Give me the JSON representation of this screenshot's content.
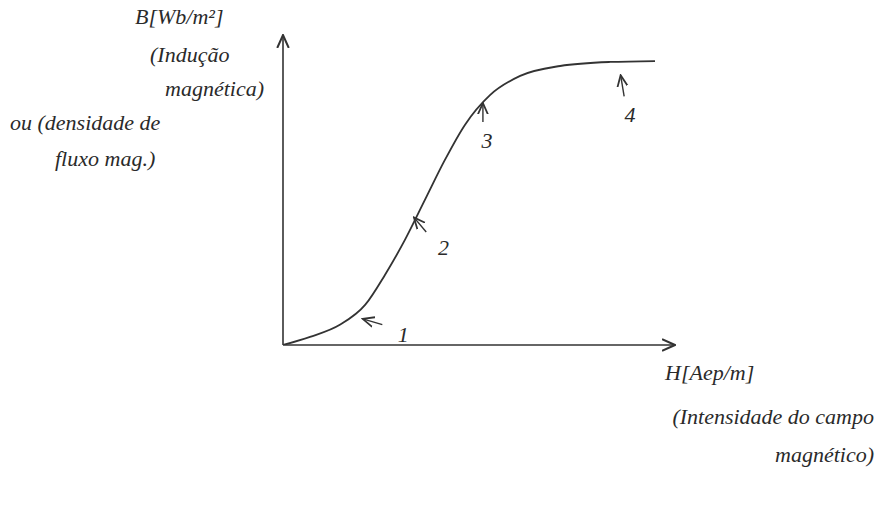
{
  "chart_data": {
    "type": "line",
    "y_label": "B[Wb/m²]",
    "y_label_note": [
      "(Indução",
      "magnética)",
      "ou (densidade de",
      "fluxo mag.)"
    ],
    "x_label": "H[Aep/m]",
    "x_label_note": [
      "(Intensidade do campo",
      "magnético)"
    ],
    "x": [
      0,
      0.69,
      1.45,
      2.1,
      2.6,
      3.11,
      3.62,
      4.13,
      4.64,
      5.28,
      6.05,
      7.07,
      8.34,
      9.49
    ],
    "values": [
      0,
      0.26,
      0.65,
      1.3,
      2.26,
      3.39,
      4.68,
      5.97,
      7.1,
      8.06,
      8.68,
      9.0,
      9.13,
      9.16
    ],
    "color": "#333333",
    "xlim": [
      0,
      10
    ],
    "ylim": [
      0,
      10
    ],
    "xticks": [],
    "yticks": [],
    "tick_labels": false,
    "grid": false,
    "annotations": [
      {
        "text": "1",
        "x": 1.96,
        "y": 0.87
      },
      {
        "text": "2",
        "x": 3.29,
        "y": 4.19
      },
      {
        "text": "3",
        "x": 5.1,
        "y": 7.9
      },
      {
        "text": "4",
        "x": 8.6,
        "y": 8.8
      }
    ]
  }
}
